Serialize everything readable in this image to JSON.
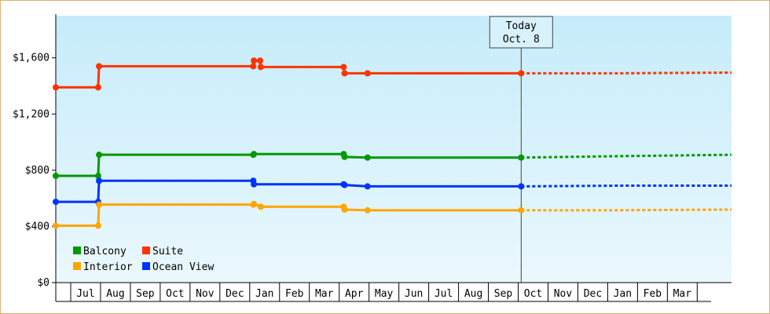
{
  "chart_data": {
    "type": "line",
    "title": "",
    "xlabel": "",
    "ylabel": "",
    "ylim": [
      0,
      1900
    ],
    "y_ticks": [
      {
        "value": 0,
        "label": "$0"
      },
      {
        "value": 400,
        "label": "$400"
      },
      {
        "value": 800,
        "label": "$800"
      },
      {
        "value": 1200,
        "label": "$1,200"
      },
      {
        "value": 1600,
        "label": "$1,600"
      }
    ],
    "x_range": [
      0,
      22.65
    ],
    "month_ticks": [
      {
        "label": "Jul",
        "start": 0.5,
        "end": 1.5
      },
      {
        "label": "Aug",
        "start": 1.5,
        "end": 2.5
      },
      {
        "label": "Sep",
        "start": 2.5,
        "end": 3.5
      },
      {
        "label": "Oct",
        "start": 3.5,
        "end": 4.5
      },
      {
        "label": "Nov",
        "start": 4.5,
        "end": 5.5
      },
      {
        "label": "Dec",
        "start": 5.5,
        "end": 6.5
      },
      {
        "label": "Jan",
        "start": 6.5,
        "end": 7.5
      },
      {
        "label": "Feb",
        "start": 7.5,
        "end": 8.5
      },
      {
        "label": "Mar",
        "start": 8.5,
        "end": 9.5
      },
      {
        "label": "Apr",
        "start": 9.5,
        "end": 10.5
      },
      {
        "label": "May",
        "start": 10.5,
        "end": 11.5
      },
      {
        "label": "Jun",
        "start": 11.5,
        "end": 12.5
      },
      {
        "label": "Jul",
        "start": 12.5,
        "end": 13.5
      },
      {
        "label": "Aug",
        "start": 13.5,
        "end": 14.5
      },
      {
        "label": "Sep",
        "start": 14.5,
        "end": 15.5
      },
      {
        "label": "Oct",
        "start": 15.5,
        "end": 16.5
      },
      {
        "label": "Nov",
        "start": 16.5,
        "end": 17.5
      },
      {
        "label": "Dec",
        "start": 17.5,
        "end": 18.5
      },
      {
        "label": "Jan",
        "start": 18.5,
        "end": 19.5
      },
      {
        "label": "Feb",
        "start": 19.5,
        "end": 20.5
      },
      {
        "label": "Mar",
        "start": 20.5,
        "end": 21.5
      }
    ],
    "today": {
      "line1": "Today",
      "line2": "Oct. 8",
      "x": 15.6
    },
    "grid": false,
    "legend_position": "bottom-left",
    "series": [
      {
        "name": "Suite",
        "color": "#ff3300",
        "points": [
          [
            0,
            1390
          ],
          [
            1.42,
            1390
          ],
          [
            1.45,
            1540
          ],
          [
            6.62,
            1540
          ],
          [
            6.64,
            1580
          ],
          [
            6.85,
            1580
          ],
          [
            6.87,
            1535
          ],
          [
            9.65,
            1535
          ],
          [
            9.68,
            1490
          ],
          [
            10.45,
            1490
          ],
          [
            15.6,
            1490
          ]
        ],
        "markers": [
          [
            0,
            1390
          ],
          [
            1.42,
            1390
          ],
          [
            1.45,
            1540
          ],
          [
            6.62,
            1540
          ],
          [
            6.64,
            1580
          ],
          [
            6.85,
            1580
          ],
          [
            6.87,
            1535
          ],
          [
            9.65,
            1535
          ],
          [
            9.68,
            1490
          ],
          [
            10.45,
            1490
          ],
          [
            15.6,
            1490
          ]
        ],
        "forecast": [
          [
            15.6,
            1490
          ],
          [
            18.8,
            1490
          ],
          [
            22.65,
            1495
          ]
        ]
      },
      {
        "name": "Balcony",
        "color": "#009900",
        "points": [
          [
            0,
            760
          ],
          [
            1.42,
            760
          ],
          [
            1.45,
            910
          ],
          [
            6.62,
            910
          ],
          [
            6.64,
            915
          ],
          [
            9.65,
            915
          ],
          [
            9.68,
            895
          ],
          [
            10.45,
            890
          ],
          [
            15.6,
            890
          ]
        ],
        "markers": [
          [
            0,
            760
          ],
          [
            1.42,
            760
          ],
          [
            1.45,
            910
          ],
          [
            6.62,
            910
          ],
          [
            6.64,
            915
          ],
          [
            9.65,
            915
          ],
          [
            9.68,
            895
          ],
          [
            10.45,
            890
          ],
          [
            15.6,
            890
          ]
        ],
        "forecast": [
          [
            15.6,
            890
          ],
          [
            18.8,
            900
          ],
          [
            22.65,
            910
          ]
        ]
      },
      {
        "name": "Ocean View",
        "color": "#0033ff",
        "points": [
          [
            0,
            575
          ],
          [
            1.42,
            575
          ],
          [
            1.45,
            725
          ],
          [
            6.62,
            725
          ],
          [
            6.64,
            700
          ],
          [
            9.65,
            700
          ],
          [
            9.68,
            695
          ],
          [
            10.45,
            685
          ],
          [
            15.6,
            685
          ]
        ],
        "markers": [
          [
            0,
            575
          ],
          [
            1.42,
            575
          ],
          [
            1.45,
            725
          ],
          [
            6.62,
            725
          ],
          [
            6.64,
            700
          ],
          [
            9.65,
            700
          ],
          [
            9.68,
            695
          ],
          [
            10.45,
            685
          ],
          [
            15.6,
            685
          ]
        ],
        "forecast": [
          [
            15.6,
            685
          ],
          [
            18.8,
            690
          ],
          [
            22.65,
            690
          ]
        ]
      },
      {
        "name": "Interior",
        "color": "#ffa500",
        "points": [
          [
            0,
            405
          ],
          [
            1.42,
            405
          ],
          [
            1.45,
            555
          ],
          [
            6.62,
            555
          ],
          [
            6.64,
            560
          ],
          [
            6.87,
            540
          ],
          [
            9.65,
            540
          ],
          [
            9.68,
            520
          ],
          [
            10.45,
            515
          ],
          [
            15.6,
            515
          ]
        ],
        "markers": [
          [
            0,
            405
          ],
          [
            1.42,
            405
          ],
          [
            1.45,
            555
          ],
          [
            6.62,
            555
          ],
          [
            6.64,
            560
          ],
          [
            6.87,
            540
          ],
          [
            9.65,
            540
          ],
          [
            9.68,
            520
          ],
          [
            10.45,
            515
          ],
          [
            15.6,
            515
          ]
        ],
        "forecast": [
          [
            15.6,
            515
          ],
          [
            18.8,
            515
          ],
          [
            22.65,
            520
          ]
        ]
      }
    ],
    "legend": [
      {
        "name": "Balcony",
        "color": "#009900"
      },
      {
        "name": "Suite",
        "color": "#ff3300"
      },
      {
        "name": "Interior",
        "color": "#ffa500"
      },
      {
        "name": "Ocean View",
        "color": "#0033ff"
      }
    ]
  }
}
